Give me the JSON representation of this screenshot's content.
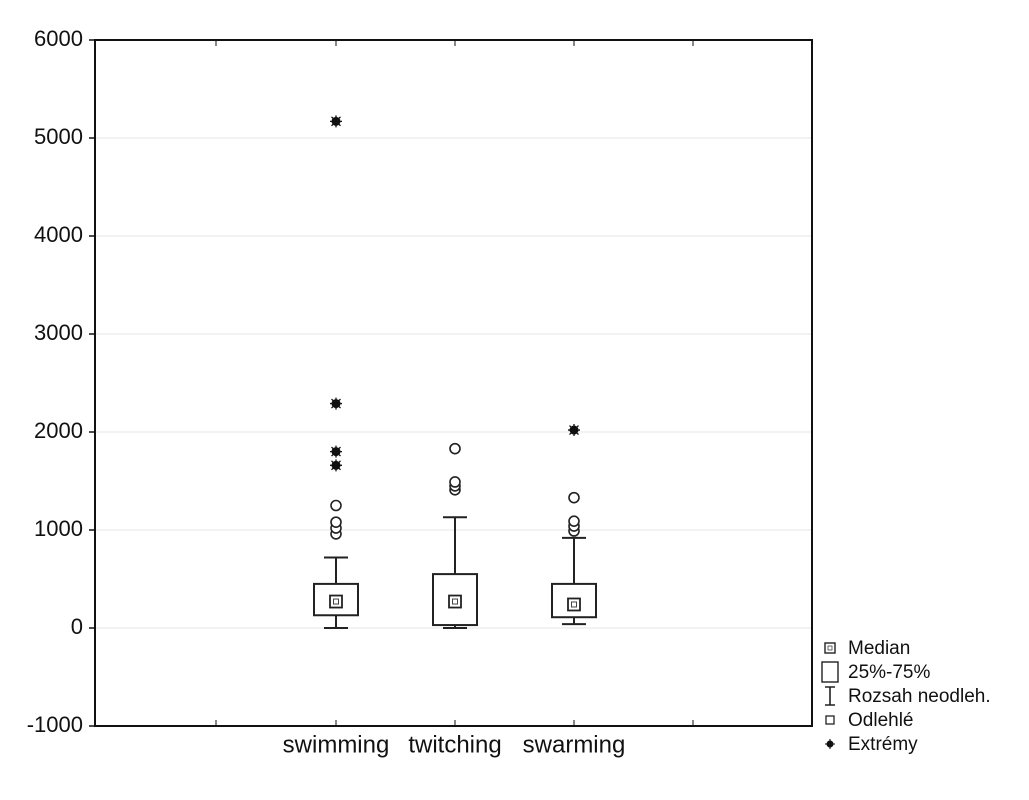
{
  "chart_data": {
    "type": "box",
    "title": "",
    "xlabel": "",
    "ylabel": "",
    "ylim": [
      -1000,
      6000
    ],
    "yticks": [
      -1000,
      0,
      1000,
      2000,
      3000,
      4000,
      5000,
      6000
    ],
    "ytick_labels": [
      "-1000",
      "0",
      "1000",
      "2000",
      "3000",
      "4000",
      "5000",
      "6000"
    ],
    "grid": "horizontal",
    "legend_position": "bottom-right, outside plot",
    "categories": [
      "swimming",
      "twitching",
      "swarming"
    ],
    "boxes": [
      {
        "category": "swimming",
        "median": 270,
        "q1": 130,
        "q3": 450,
        "whisker_low": 0,
        "whisker_high": 720,
        "outliers": [
          960,
          1020,
          1080,
          1250
        ],
        "extremes": [
          1660,
          1800,
          2290,
          5170
        ]
      },
      {
        "category": "twitching",
        "median": 270,
        "q1": 30,
        "q3": 550,
        "whisker_low": 0,
        "whisker_high": 1130,
        "outliers": [
          1410,
          1450,
          1490,
          1830
        ],
        "extremes": []
      },
      {
        "category": "swarming",
        "median": 240,
        "q1": 110,
        "q3": 450,
        "whisker_low": 40,
        "whisker_high": 920,
        "outliers": [
          990,
          1040,
          1090,
          1330
        ],
        "extremes": [
          2020
        ]
      }
    ],
    "legend": [
      {
        "key": "median",
        "label": "Median"
      },
      {
        "key": "box",
        "label": "25%-75%"
      },
      {
        "key": "whisker",
        "label": "Rozsah neodleh."
      },
      {
        "key": "outlier",
        "label": "Odlehlé"
      },
      {
        "key": "extreme",
        "label": "Extrémy"
      }
    ]
  }
}
